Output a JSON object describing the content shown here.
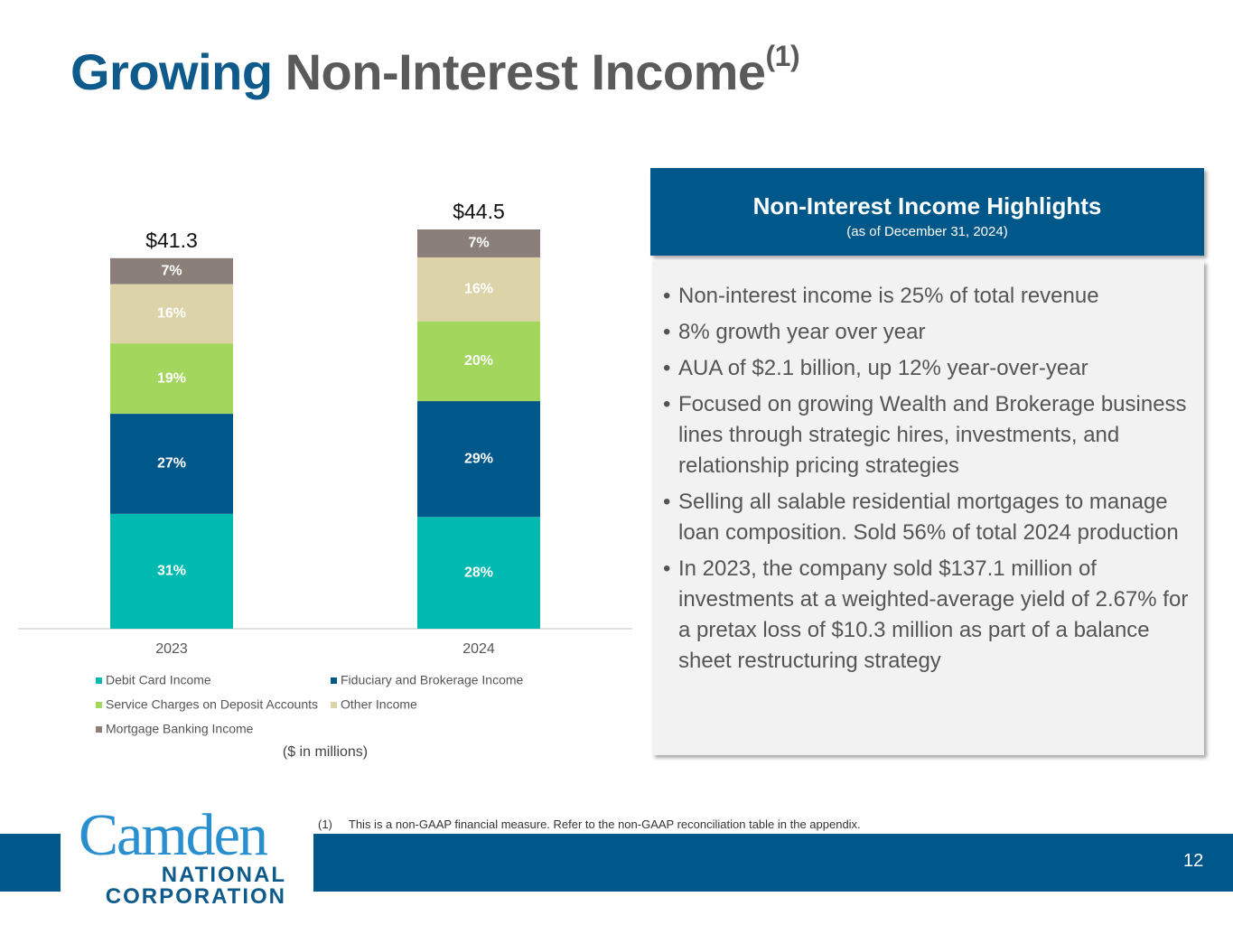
{
  "title": {
    "bold": "Growing",
    "rest": "Non-Interest Income",
    "superscript": "(1)"
  },
  "chart_data": {
    "type": "bar",
    "stacked": true,
    "categories": [
      "2023",
      "2024"
    ],
    "totals": {
      "values": [
        41.3,
        44.5
      ],
      "value_labels": [
        "$41.3",
        "$44.5"
      ]
    },
    "series": [
      {
        "name": "Debit Card Income",
        "color": "#00b9b0",
        "values": [
          31,
          28
        ],
        "value_labels": [
          "31%",
          "28%"
        ]
      },
      {
        "name": "Fiduciary and Brokerage Income",
        "color": "#00578a",
        "values": [
          27,
          29
        ],
        "value_labels": [
          "27%",
          "29%"
        ]
      },
      {
        "name": "Service Charges on Deposit Accounts",
        "color": "#a3d65c",
        "values": [
          19,
          20
        ],
        "value_labels": [
          "19%",
          "20%"
        ]
      },
      {
        "name": "Other Income",
        "color": "#ddd3a9",
        "values": [
          16,
          16
        ],
        "value_labels": [
          "16%",
          "16%"
        ]
      },
      {
        "name": "Mortgage Banking Income",
        "color": "#8a8079",
        "values": [
          7,
          7
        ],
        "value_labels": [
          "7%",
          "7%"
        ]
      }
    ],
    "unit_note": "($ in millions)"
  },
  "panel": {
    "title": "Non-Interest Income Highlights",
    "subtitle": "(as of December 31, 2024)",
    "bullets": [
      "Non-interest income is 25% of total revenue",
      "8% growth year over year",
      "AUA of $2.1 billion, up 12% year-over-year",
      "Focused on growing Wealth and Brokerage business lines through strategic hires, investments, and relationship pricing strategies",
      "Selling all salable residential mortgages to manage loan composition. Sold 56% of total 2024 production",
      "In 2023, the company sold $137.1 million of investments at a weighted-average yield of 2.67% for a pretax loss of $10.3 million as part of a balance sheet restructuring strategy"
    ]
  },
  "footnote": {
    "marker": "(1)",
    "text": "This is a non-GAAP financial measure. Refer to the non-GAAP reconciliation table in the appendix."
  },
  "logo": {
    "name": "Camden",
    "line1": "NATIONAL",
    "line2": "CORPORATION"
  },
  "page_number": "12"
}
